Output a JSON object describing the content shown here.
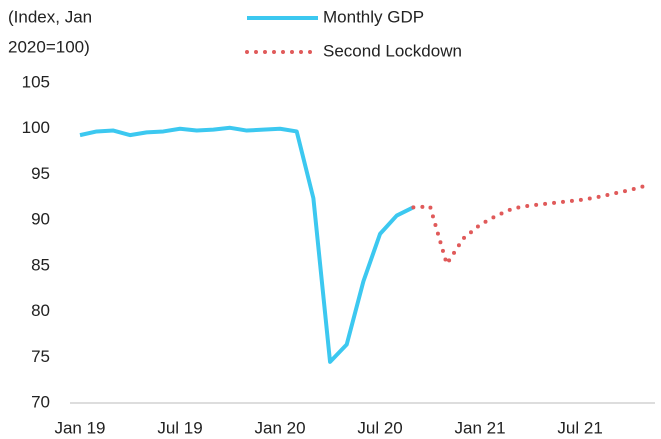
{
  "chart_data": {
    "type": "line",
    "y_axis_label": [
      "(Index, Jan",
      "2020=100)"
    ],
    "categories": [
      "Jan 19",
      null,
      null,
      null,
      null,
      null,
      "Jul 19",
      null,
      null,
      null,
      null,
      null,
      "Jan 20",
      null,
      null,
      null,
      null,
      null,
      "Jul 20",
      null,
      null,
      null,
      null,
      null,
      "Jan 21",
      null,
      null,
      null,
      null,
      null,
      "Jul 21",
      null,
      null,
      null,
      null
    ],
    "series": [
      {
        "name": "Monthly GDP",
        "color": "#3cc8f0",
        "style": "solid",
        "values": [
          99.3,
          99.7,
          99.8,
          99.3,
          99.6,
          99.7,
          100.0,
          99.8,
          99.9,
          100.1,
          99.8,
          99.9,
          100.0,
          99.7,
          92.4,
          74.5,
          76.4,
          83.3,
          88.5,
          90.5,
          91.4,
          null,
          null,
          null,
          null,
          null,
          null,
          null,
          null,
          null,
          null,
          null,
          null,
          null,
          null
        ]
      },
      {
        "name": "Second Lockdown",
        "color": "#e05a5a",
        "style": "dotted",
        "values": [
          null,
          null,
          null,
          null,
          null,
          null,
          null,
          null,
          null,
          null,
          null,
          null,
          null,
          null,
          null,
          null,
          null,
          null,
          null,
          null,
          91.4,
          91.5,
          85.2,
          88.0,
          89.5,
          90.5,
          91.3,
          91.6,
          91.8,
          92.0,
          92.2,
          92.5,
          92.9,
          93.3,
          93.8
        ]
      }
    ],
    "ylim": [
      70,
      105
    ],
    "yticks": [
      70,
      75,
      80,
      85,
      90,
      95,
      100,
      105
    ],
    "grid": false
  }
}
